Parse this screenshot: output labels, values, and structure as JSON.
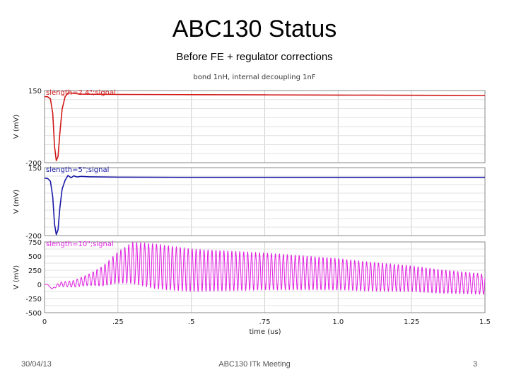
{
  "slide": {
    "title": "ABC130 Status",
    "subtitle": "Before FE + regulator corrections",
    "footer_date": "30/04/13",
    "footer_meeting": "ABC130 ITk Meeting",
    "page_number": "3"
  },
  "chart_data": {
    "type": "line",
    "title": "bond 1nH, internal decoupling 1nF",
    "xlabel": "time (us)",
    "x_ticks": [
      "0",
      ".25",
      ".5",
      ".75",
      "1.0",
      "1.25",
      "1.5"
    ],
    "xlim": [
      0,
      1.5
    ],
    "grid": true,
    "panels": [
      {
        "label": "slength=2.4\";signal",
        "ylabel": "V (mV)",
        "y_ticks": [
          "150",
          "-200"
        ],
        "ylim": [
          -200,
          150
        ],
        "color": "#d01818",
        "series": [
          {
            "x": [
              0,
              0.01,
              0.02,
              0.028,
              0.034,
              0.04,
              0.046,
              0.052,
              0.06,
              0.07,
              0.08,
              0.09,
              0.1,
              0.125,
              0.15,
              0.25,
              0.5,
              0.75,
              1.0,
              1.25,
              1.5
            ],
            "y": [
              120,
              120,
              110,
              40,
              -120,
              -190,
              -170,
              -60,
              60,
              120,
              138,
              138,
              136,
              133,
              132,
              131,
              130,
              129,
              128,
              127,
              126
            ]
          }
        ]
      },
      {
        "label": "slength=5\";signal",
        "ylabel": "V (mV)",
        "y_ticks": [
          "150",
          "-200"
        ],
        "ylim": [
          -200,
          150
        ],
        "color": "#1a1aa8",
        "series": [
          {
            "x": [
              0,
              0.01,
              0.02,
              0.028,
              0.034,
              0.04,
              0.046,
              0.052,
              0.06,
              0.07,
              0.08,
              0.09,
              0.1,
              0.11,
              0.125,
              0.15,
              0.25,
              0.5,
              0.75,
              1.0,
              1.25,
              1.5
            ],
            "y": [
              95,
              95,
              80,
              0,
              -140,
              -195,
              -170,
              -60,
              40,
              85,
              110,
              98,
              108,
              102,
              105,
              103,
              101,
              100,
              100,
              100,
              100,
              100
            ]
          }
        ]
      },
      {
        "label": "slength=10\";signal",
        "ylabel": "V (mV)",
        "y_ticks": [
          "750",
          "500",
          "250",
          "0",
          "-250",
          "-500"
        ],
        "ylim": [
          -500,
          750
        ],
        "color": "#e020e0",
        "envelope": {
          "x": [
            0,
            0.01,
            0.025,
            0.05,
            0.1,
            0.15,
            0.2,
            0.25,
            0.3,
            0.375,
            0.5,
            0.6,
            0.75,
            0.9,
            1.0,
            1.1,
            1.25,
            1.35,
            1.45,
            1.5
          ],
          "center": [
            0,
            0,
            -80,
            0,
            10,
            80,
            150,
            300,
            380,
            320,
            250,
            240,
            230,
            200,
            180,
            140,
            100,
            50,
            20,
            0
          ],
          "amplitude": [
            0,
            0,
            0,
            40,
            60,
            100,
            180,
            280,
            370,
            400,
            380,
            360,
            330,
            300,
            280,
            260,
            230,
            210,
            190,
            180
          ]
        },
        "oscillation_period_us": 0.0135
      }
    ]
  }
}
